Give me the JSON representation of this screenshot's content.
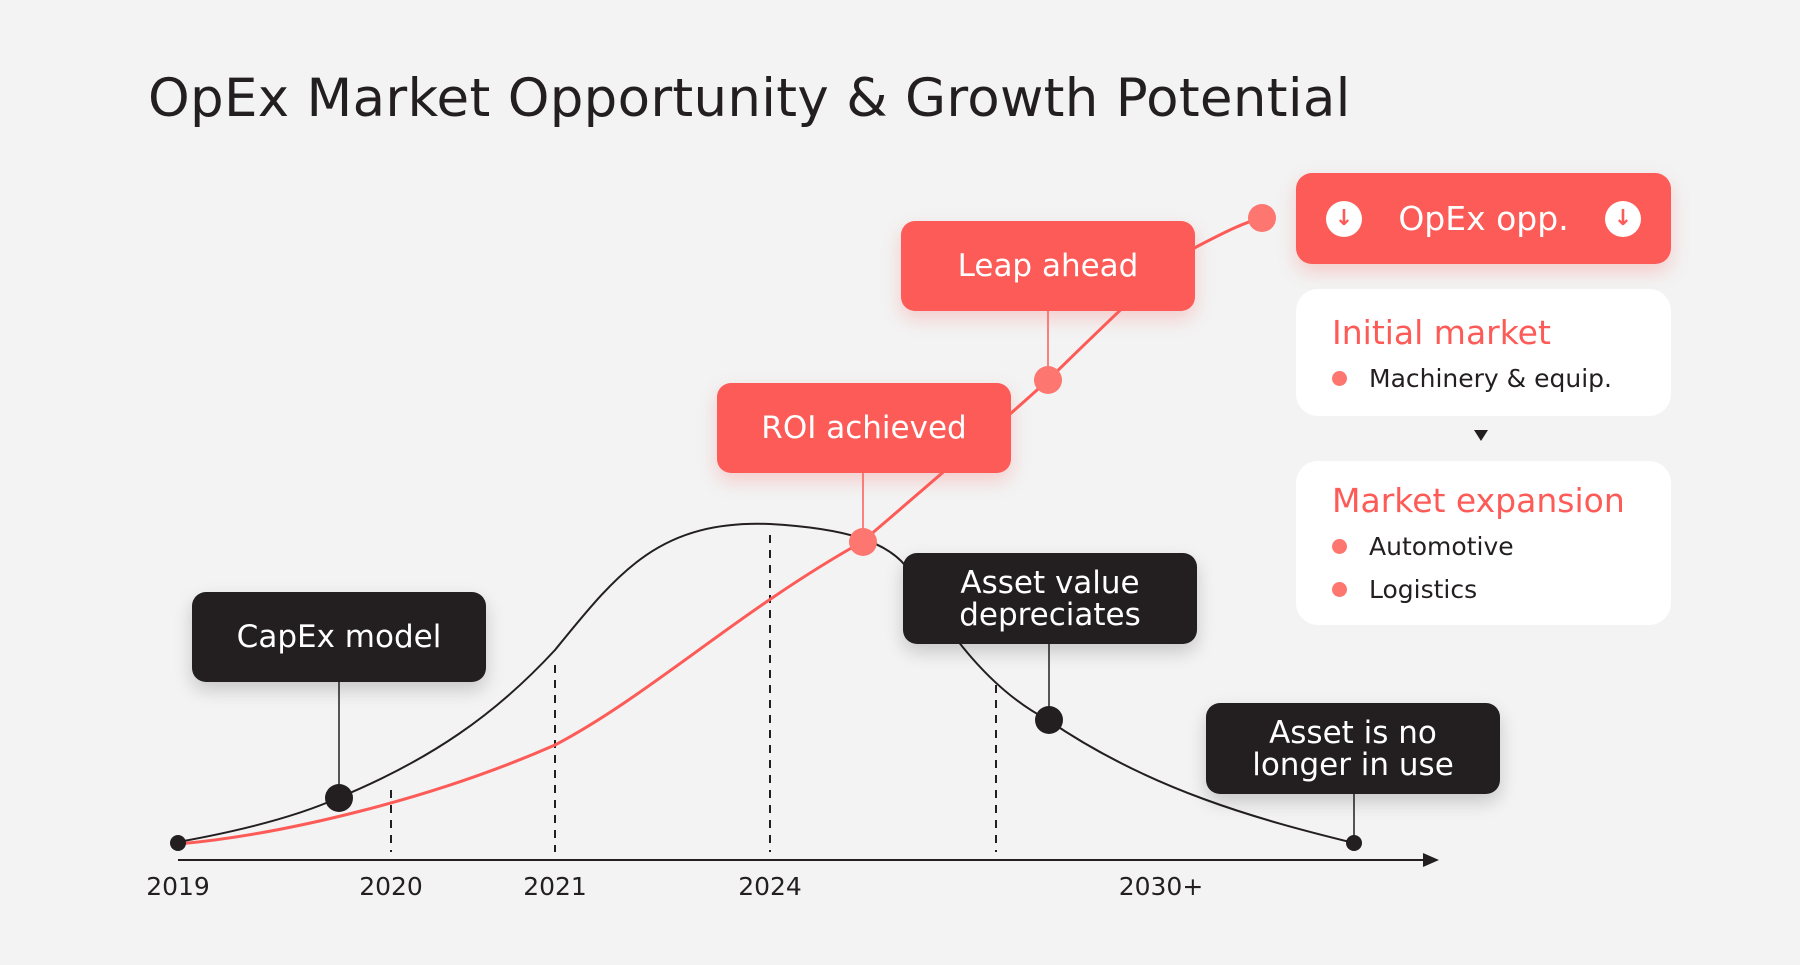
{
  "title": "OpEx Market Opportunity & Growth Potential",
  "colors": {
    "accent": "#fd5b57",
    "dark": "#231f20",
    "background": "#f3f3f3"
  },
  "axis": {
    "ticks": [
      "2019",
      "2020",
      "2021",
      "2024",
      "2030+"
    ]
  },
  "callouts": {
    "capex_model": "CapEx model",
    "roi_achieved": "ROI achieved",
    "leap_ahead": "Leap ahead",
    "asset_depreciates": [
      "Asset value",
      "depreciates"
    ],
    "asset_no_longer": [
      "Asset is no",
      "longer in use"
    ]
  },
  "opex_opp": {
    "label": "OpEx opp.",
    "icon": "arrow-down-circle-icon"
  },
  "initial_market": {
    "title": "Initial market",
    "items": [
      "Machinery & equip."
    ]
  },
  "market_expansion": {
    "title": "Market expansion",
    "items": [
      "Automotive",
      "Logistics"
    ]
  }
}
